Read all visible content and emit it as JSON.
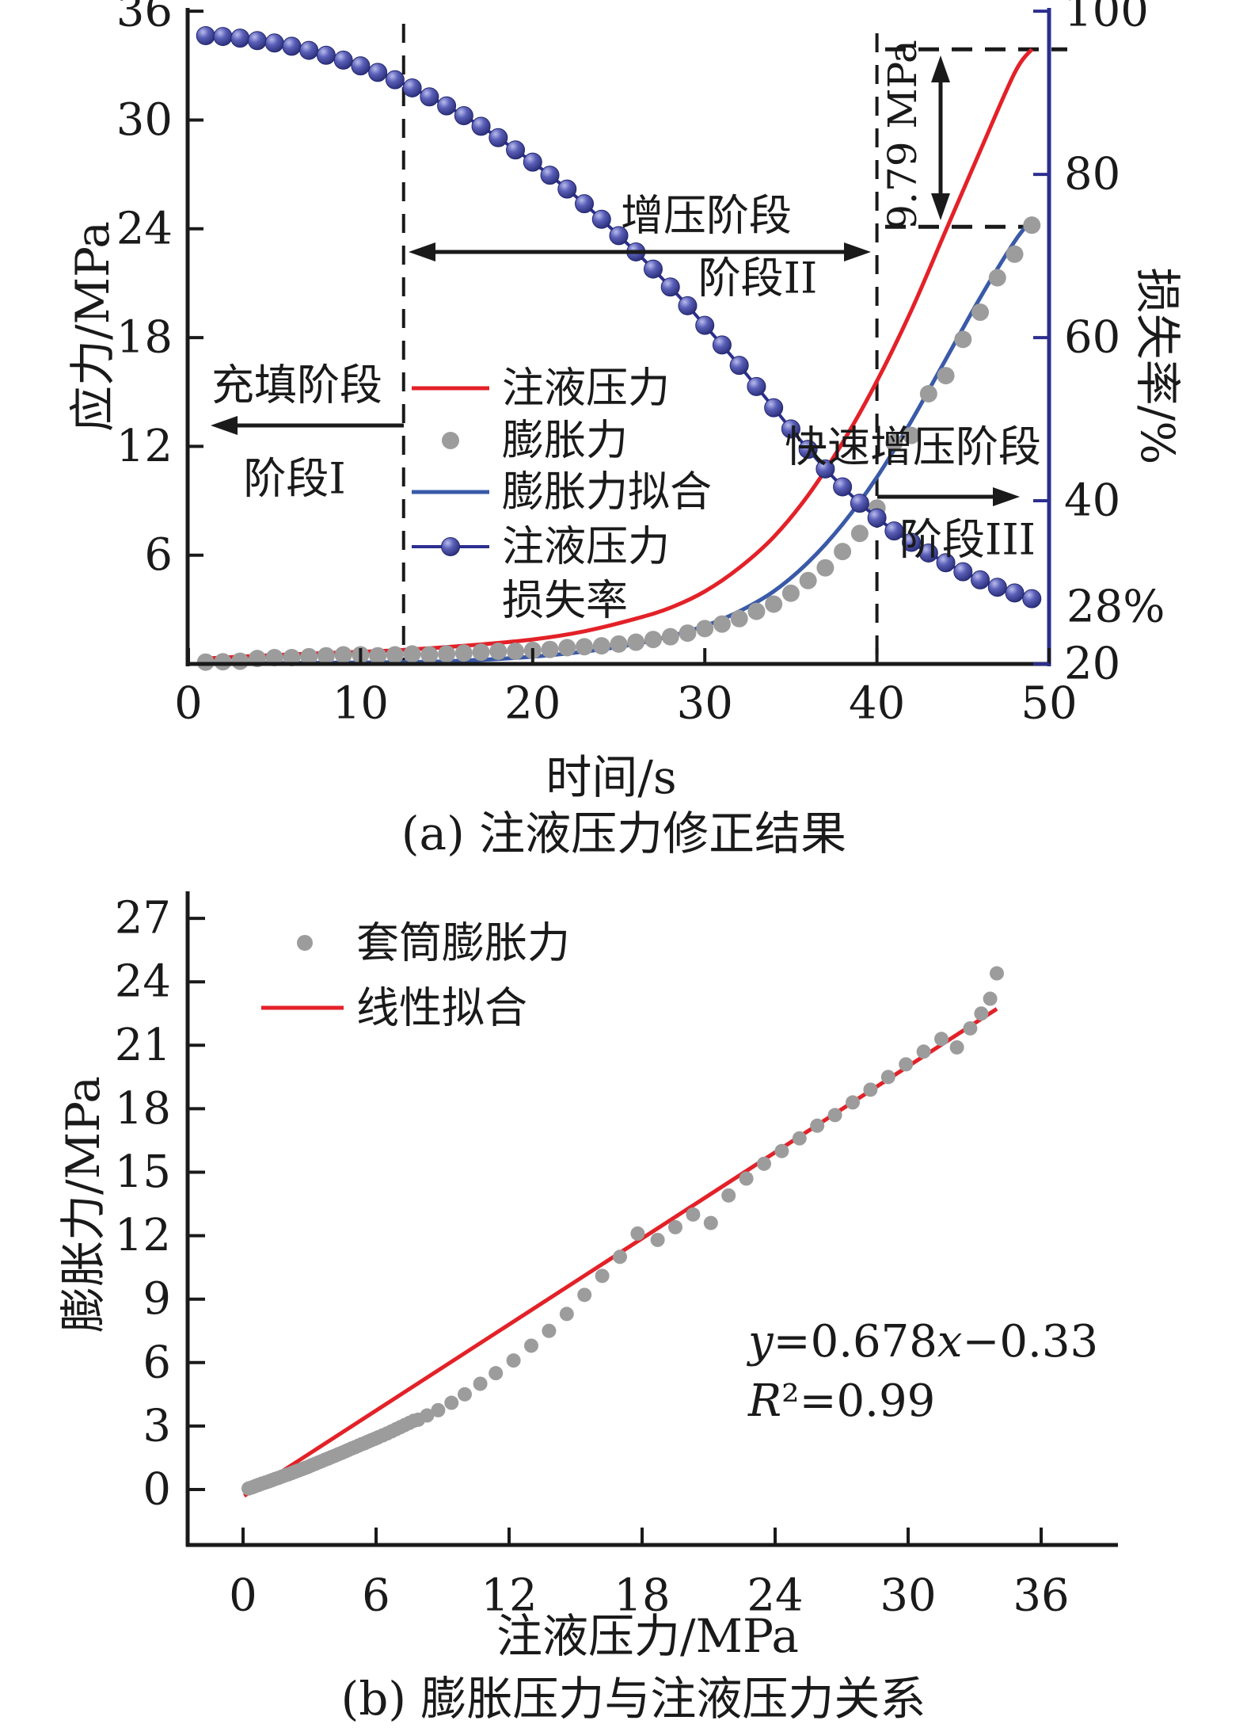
{
  "figure": {
    "background": "#ffffff",
    "colors": {
      "red": "#e32128",
      "blue": "#3a5aa8",
      "navy": "#2b2f8e",
      "navy_dark": "#23276f",
      "sphere_light": "#b9bcec",
      "sphere_mid": "#5a5fb8",
      "gray": "#9c9c9c",
      "black": "#1a1a1a"
    }
  },
  "chart_data": [
    {
      "id": "a",
      "type": "line",
      "caption": "(a) 注液压力修正结果",
      "xlabel": "时间/s",
      "ylabel_left": "应力/MPa",
      "ylabel_right": "损失率/%",
      "xlim": [
        0,
        50
      ],
      "xticks": [
        0,
        10,
        20,
        30,
        40,
        50
      ],
      "ylim_left": [
        0,
        36
      ],
      "yticks_left": [
        6,
        12,
        18,
        24,
        30,
        36
      ],
      "ylim_right": [
        20,
        100
      ],
      "yticks_right": [
        20,
        40,
        60,
        80,
        100
      ],
      "grid": false,
      "legend": [
        {
          "label": "注液压力",
          "marker": "line",
          "color_key": "red"
        },
        {
          "label": "膨胀力",
          "marker": "dot",
          "color_key": "gray"
        },
        {
          "label": "膨胀力拟合",
          "marker": "line",
          "color_key": "blue"
        },
        {
          "label": "注液压力",
          "label2": "损失率",
          "marker": "sphere-line",
          "color_key": "navy"
        }
      ],
      "series": [
        {
          "name": "注液压力",
          "type": "line",
          "color_key": "red",
          "axis": "left",
          "points": [
            [
              1,
              0.3
            ],
            [
              4,
              0.45
            ],
            [
              8,
              0.6
            ],
            [
              12,
              0.75
            ],
            [
              16,
              1.0
            ],
            [
              20,
              1.35
            ],
            [
              23,
              1.8
            ],
            [
              26,
              2.5
            ],
            [
              28,
              3.1
            ],
            [
              30,
              4.0
            ],
            [
              32,
              5.3
            ],
            [
              34,
              7.0
            ],
            [
              36,
              9.3
            ],
            [
              38,
              12.2
            ],
            [
              40,
              15.6
            ],
            [
              42,
              19.5
            ],
            [
              44,
              23.9
            ],
            [
              46,
              28.3
            ],
            [
              48,
              32.6
            ],
            [
              49,
              33.9
            ]
          ]
        },
        {
          "name": "膨胀力",
          "type": "scatter",
          "color_key": "gray",
          "axis": "left",
          "t_start": 1,
          "values": [
            0.1,
            0.12,
            0.15,
            0.3,
            0.35,
            0.35,
            0.4,
            0.45,
            0.5,
            0.5,
            0.45,
            0.5,
            0.55,
            0.5,
            0.55,
            0.6,
            0.65,
            0.7,
            0.7,
            0.75,
            0.8,
            0.9,
            0.95,
            1.0,
            1.1,
            1.2,
            1.35,
            1.5,
            1.7,
            1.95,
            2.2,
            2.5,
            2.9,
            3.3,
            3.9,
            4.6,
            5.3,
            6.2,
            7.2,
            8.6,
            12.2,
            12.6,
            14.9,
            15.9,
            17.9,
            19.4,
            21.3,
            22.6,
            24.2
          ]
        },
        {
          "name": "膨胀力拟合",
          "type": "line",
          "color_key": "blue",
          "axis": "left",
          "points": [
            [
              1,
              0.02
            ],
            [
              10,
              0.08
            ],
            [
              15,
              0.15
            ],
            [
              20,
              0.4
            ],
            [
              24,
              0.8
            ],
            [
              27,
              1.3
            ],
            [
              30,
              2.1
            ],
            [
              32,
              2.9
            ],
            [
              34,
              4.0
            ],
            [
              36,
              5.6
            ],
            [
              38,
              7.7
            ],
            [
              40,
              10.3
            ],
            [
              42,
              13.4
            ],
            [
              44,
              16.8
            ],
            [
              46,
              20.2
            ],
            [
              48,
              23.3
            ],
            [
              49,
              24.5
            ]
          ]
        },
        {
          "name": "注液压力损失率",
          "type": "sphere-line",
          "color_key": "navy",
          "axis": "right",
          "t_start": 1,
          "values": [
            97.0,
            96.9,
            96.7,
            96.4,
            96.1,
            95.7,
            95.2,
            94.6,
            94.0,
            93.3,
            92.5,
            91.6,
            90.6,
            89.5,
            88.4,
            87.2,
            85.9,
            84.5,
            83.0,
            81.5,
            79.9,
            78.2,
            76.4,
            74.5,
            72.5,
            70.5,
            68.4,
            66.2,
            63.9,
            61.5,
            59.1,
            56.6,
            54.0,
            51.4,
            48.8,
            46.3,
            43.9,
            41.7,
            39.7,
            37.9,
            36.3,
            34.9,
            33.6,
            32.4,
            31.3,
            30.3,
            29.4,
            28.7,
            28.0
          ]
        }
      ],
      "annotations": {
        "stage1_line1": "充填阶段",
        "stage1_line2": "阶段I",
        "stage2_line1": "增压阶段",
        "stage2_line2": "阶段II",
        "stage3_line1": "快速增压阶段",
        "stage3_line2": "阶段III",
        "delta_label": "9.79 MPa",
        "final_loss_label": "28%",
        "dashed_x": [
          12.5,
          40
        ],
        "dashed_y_mpa": [
          33.9,
          24.11
        ]
      }
    },
    {
      "id": "b",
      "type": "scatter",
      "caption": "(b) 膨胀压力与注液压力关系",
      "xlabel": "注液压力/MPa",
      "ylabel": "膨胀力/MPa",
      "xlim": [
        0,
        36
      ],
      "xticks": [
        0,
        6,
        12,
        18,
        24,
        30,
        36
      ],
      "ylim": [
        0,
        27
      ],
      "yticks": [
        0,
        3,
        6,
        9,
        12,
        15,
        18,
        21,
        24,
        27
      ],
      "grid": false,
      "legend": [
        {
          "label": "套筒膨胀力",
          "marker": "dot",
          "color_key": "gray"
        },
        {
          "label": "线性拟合",
          "marker": "line",
          "color_key": "red"
        }
      ],
      "scatter": [
        [
          0.25,
          0.05
        ],
        [
          0.4,
          0.1
        ],
        [
          0.55,
          0.16
        ],
        [
          0.7,
          0.22
        ],
        [
          0.85,
          0.28
        ],
        [
          1.0,
          0.33
        ],
        [
          1.15,
          0.38
        ],
        [
          1.3,
          0.44
        ],
        [
          1.45,
          0.5
        ],
        [
          1.6,
          0.55
        ],
        [
          1.75,
          0.61
        ],
        [
          1.9,
          0.67
        ],
        [
          2.05,
          0.72
        ],
        [
          2.2,
          0.78
        ],
        [
          2.35,
          0.84
        ],
        [
          2.5,
          0.9
        ],
        [
          2.65,
          0.96
        ],
        [
          2.8,
          1.02
        ],
        [
          2.95,
          1.08
        ],
        [
          3.1,
          1.15
        ],
        [
          3.25,
          1.21
        ],
        [
          3.4,
          1.28
        ],
        [
          3.55,
          1.34
        ],
        [
          3.7,
          1.41
        ],
        [
          3.85,
          1.47
        ],
        [
          4.0,
          1.54
        ],
        [
          4.15,
          1.6
        ],
        [
          4.3,
          1.67
        ],
        [
          4.45,
          1.73
        ],
        [
          4.6,
          1.8
        ],
        [
          4.75,
          1.87
        ],
        [
          4.9,
          1.94
        ],
        [
          5.05,
          2.0
        ],
        [
          5.2,
          2.07
        ],
        [
          5.35,
          2.14
        ],
        [
          5.5,
          2.2
        ],
        [
          5.65,
          2.27
        ],
        [
          5.8,
          2.34
        ],
        [
          5.95,
          2.4
        ],
        [
          6.1,
          2.47
        ],
        [
          6.3,
          2.56
        ],
        [
          6.5,
          2.65
        ],
        [
          6.7,
          2.75
        ],
        [
          6.9,
          2.85
        ],
        [
          7.1,
          2.95
        ],
        [
          7.3,
          3.05
        ],
        [
          7.5,
          3.15
        ],
        [
          7.7,
          3.25
        ],
        [
          7.9,
          3.3
        ],
        [
          8.3,
          3.5
        ],
        [
          8.8,
          3.75
        ],
        [
          9.4,
          4.1
        ],
        [
          10.0,
          4.5
        ],
        [
          10.7,
          5.0
        ],
        [
          11.4,
          5.5
        ],
        [
          12.2,
          6.1
        ],
        [
          13.0,
          6.8
        ],
        [
          13.8,
          7.5
        ],
        [
          14.6,
          8.3
        ],
        [
          15.4,
          9.2
        ],
        [
          16.2,
          10.1
        ],
        [
          17.0,
          11.0
        ],
        [
          17.8,
          12.1
        ],
        [
          18.7,
          11.8
        ],
        [
          19.5,
          12.4
        ],
        [
          20.3,
          13.0
        ],
        [
          21.1,
          12.6
        ],
        [
          21.9,
          13.9
        ],
        [
          22.7,
          14.7
        ],
        [
          23.5,
          15.4
        ],
        [
          24.3,
          16.0
        ],
        [
          25.1,
          16.6
        ],
        [
          25.9,
          17.2
        ],
        [
          26.7,
          17.7
        ],
        [
          27.5,
          18.3
        ],
        [
          28.3,
          18.9
        ],
        [
          29.1,
          19.5
        ],
        [
          29.9,
          20.1
        ],
        [
          30.7,
          20.7
        ],
        [
          31.5,
          21.3
        ],
        [
          32.2,
          20.9
        ],
        [
          32.8,
          21.8
        ],
        [
          33.3,
          22.5
        ],
        [
          33.7,
          23.2
        ],
        [
          34.0,
          24.4
        ]
      ],
      "fit_line": {
        "x1": 0.05,
        "y1": -0.3,
        "x2": 34.0,
        "y2": 22.72
      },
      "equation": "y=0.678x−0.33",
      "equation_parts": [
        [
          "y",
          true
        ],
        [
          "=0.678",
          false
        ],
        [
          "x",
          true
        ],
        [
          "−0.33",
          false
        ]
      ],
      "r_squared": "R²=0.99",
      "r_squared_parts": [
        [
          "R",
          true
        ],
        [
          "²",
          false
        ],
        [
          "=0.99",
          false
        ]
      ]
    }
  ]
}
